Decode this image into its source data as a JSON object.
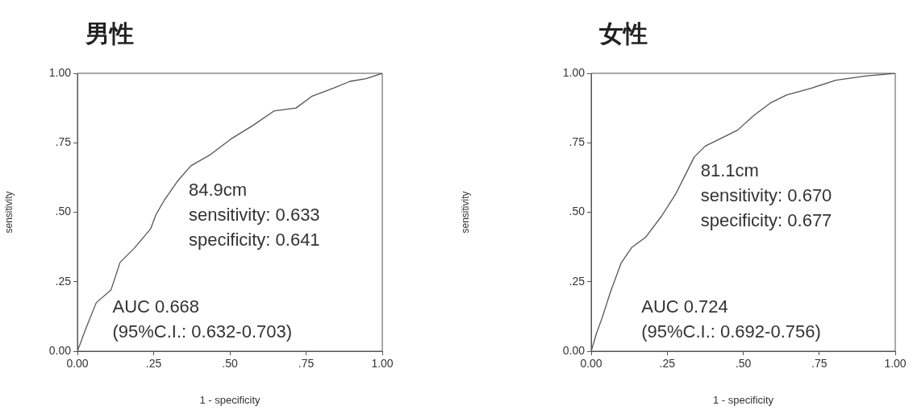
{
  "chart_data": [
    {
      "type": "line",
      "title": "男性",
      "xlabel": "1 - specificity",
      "ylabel": "sensitivity",
      "x": [
        0,
        0.027,
        0.062,
        0.11,
        0.14,
        0.186,
        0.24,
        0.257,
        0.283,
        0.327,
        0.372,
        0.434,
        0.504,
        0.575,
        0.646,
        0.717,
        0.77,
        0.84,
        0.894,
        0.947,
        1
      ],
      "series": [
        {
          "color": "#555555",
          "values": [
            0,
            0.08,
            0.175,
            0.22,
            0.32,
            0.37,
            0.44,
            0.49,
            0.54,
            0.61,
            0.667,
            0.706,
            0.764,
            0.812,
            0.865,
            0.875,
            0.918,
            0.947,
            0.971,
            0.981,
            1
          ]
        }
      ],
      "xlim": [
        0,
        1
      ],
      "ylim": [
        0,
        1
      ],
      "xticks": [
        {
          "value": 0,
          "label": "0.00"
        },
        {
          "value": 0.25,
          "label": ".25"
        },
        {
          "value": 0.5,
          "label": ".50"
        },
        {
          "value": 0.75,
          "label": ".75"
        },
        {
          "value": 1,
          "label": "1.00"
        }
      ],
      "yticks": [
        {
          "value": 0,
          "label": "0.00"
        },
        {
          "value": 0.25,
          "label": ".25"
        },
        {
          "value": 0.5,
          "label": ".50"
        },
        {
          "value": 0.75,
          "label": ".75"
        },
        {
          "value": 1,
          "label": "1.00"
        }
      ],
      "grid": false,
      "legend": false,
      "marker": "none",
      "line_style": "solid",
      "annotations": [
        "84.9cm",
        "sensitivity: 0.633",
        "specificity: 0.641",
        "AUC 0.668",
        "(95%C.I.: 0.632-0.703)"
      ]
    },
    {
      "type": "line",
      "title": "女性",
      "xlabel": "1 - specificity",
      "ylabel": "sensitivity",
      "x": [
        0,
        0.018,
        0.036,
        0.0625,
        0.098,
        0.134,
        0.179,
        0.232,
        0.277,
        0.3125,
        0.339,
        0.375,
        0.429,
        0.482,
        0.536,
        0.589,
        0.643,
        0.723,
        0.804,
        0.902,
        1
      ],
      "series": [
        {
          "color": "#555555",
          "values": [
            0,
            0.066,
            0.12,
            0.21,
            0.316,
            0.374,
            0.41,
            0.487,
            0.564,
            0.641,
            0.699,
            0.738,
            0.767,
            0.796,
            0.849,
            0.893,
            0.922,
            0.946,
            0.975,
            0.99,
            1
          ]
        }
      ],
      "xlim": [
        0,
        1
      ],
      "ylim": [
        0,
        1
      ],
      "xticks": [
        {
          "value": 0,
          "label": "0.00"
        },
        {
          "value": 0.25,
          "label": ".25"
        },
        {
          "value": 0.5,
          "label": ".50"
        },
        {
          "value": 0.75,
          "label": ".75"
        },
        {
          "value": 1,
          "label": "1.00"
        }
      ],
      "yticks": [
        {
          "value": 0,
          "label": "0.00"
        },
        {
          "value": 0.25,
          "label": ".25"
        },
        {
          "value": 0.5,
          "label": ".50"
        },
        {
          "value": 0.75,
          "label": ".75"
        },
        {
          "value": 1,
          "label": "1.00"
        }
      ],
      "grid": false,
      "legend": false,
      "marker": "none",
      "line_style": "solid",
      "annotations": [
        "81.1cm",
        "sensitivity: 0.670",
        "specificity: 0.677",
        "AUC 0.724",
        "(95%C.I.: 0.692-0.756)"
      ]
    }
  ]
}
